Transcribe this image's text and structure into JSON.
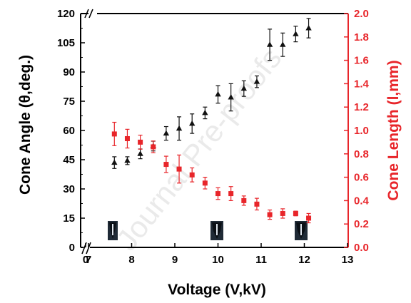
{
  "colors": {
    "left_axis": "#000000",
    "right_axis": "#e8252a",
    "angle_series": "#111111",
    "length_series": "#e8252a"
  },
  "watermark": "Journal Pre-proofs",
  "chart_data": {
    "type": "scatter",
    "xlabel": "Voltage (V,kV)",
    "ylabel": "Cone Angle (θ,deg.)",
    "y2label": "Cone Length (l,mm)",
    "xlim": [
      0,
      13
    ],
    "x_axis_break": [
      0,
      7
    ],
    "x_ticks": [
      0,
      7,
      8,
      9,
      10,
      11,
      12,
      13
    ],
    "ylim": [
      0,
      120
    ],
    "y_axis_break": [
      112,
      118
    ],
    "y_ticks": [
      0,
      15,
      30,
      45,
      60,
      75,
      90,
      105,
      120
    ],
    "y2lim": [
      0,
      2
    ],
    "y2_ticks": [
      0.0,
      0.2,
      0.4,
      0.6,
      0.8,
      1.0,
      1.2,
      1.4,
      1.6,
      1.8,
      2.0
    ],
    "grid": false,
    "series": [
      {
        "marker": "triangle",
        "axis": "left",
        "color": "#111111",
        "x": [
          7.6,
          7.9,
          8.2,
          8.5,
          8.8,
          9.1,
          9.4,
          9.7,
          10.0,
          10.3,
          10.6,
          10.9,
          11.2,
          11.5,
          11.8,
          12.1
        ],
        "y": [
          43.5,
          44.5,
          48,
          52,
          58.5,
          61,
          63.5,
          69,
          78.5,
          77,
          81.5,
          85,
          104,
          104,
          109.5,
          112.5
        ],
        "err": [
          3,
          2,
          2.5,
          2.5,
          3.5,
          6,
          5,
          3,
          4.5,
          7,
          4,
          3,
          8,
          6,
          4,
          5
        ]
      },
      {
        "marker": "square",
        "axis": "right",
        "color": "#e8252a",
        "x": [
          7.6,
          7.9,
          8.2,
          8.5,
          8.8,
          9.1,
          9.4,
          9.7,
          10.0,
          10.3,
          10.6,
          10.9,
          11.2,
          11.5,
          11.8,
          12.1
        ],
        "y": [
          0.97,
          0.93,
          0.9,
          0.86,
          0.71,
          0.67,
          0.62,
          0.55,
          0.46,
          0.46,
          0.4,
          0.37,
          0.28,
          0.29,
          0.29,
          0.25
        ],
        "err": [
          0.1,
          0.08,
          0.06,
          0.05,
          0.07,
          0.12,
          0.06,
          0.05,
          0.05,
          0.06,
          0.04,
          0.05,
          0.04,
          0.04,
          0.02,
          0.04
        ]
      }
    ]
  }
}
